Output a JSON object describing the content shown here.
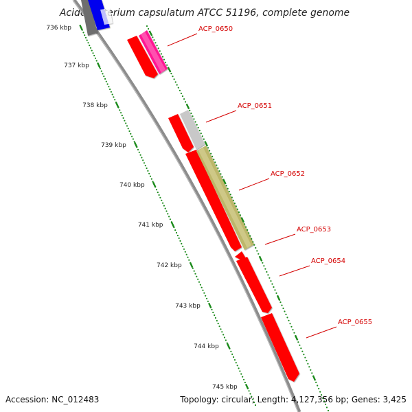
{
  "title": "Acidobacterium capsulatum ATCC 51196, complete genome",
  "footer": {
    "accession": "Accession: NC_012483",
    "summary": "Topology: circular; Length: 4,127,356 bp; Genes: 3,425"
  },
  "ticks": [
    "736 kbp",
    "737 kbp",
    "738 kbp",
    "739 kbp",
    "740 kbp",
    "741 kbp",
    "742 kbp",
    "743 kbp",
    "744 kbp",
    "745 kbp"
  ],
  "colors": {
    "backbone": "#8c8c8c",
    "cds": "#ff0000",
    "pink": "#ff1493",
    "gray_feature": "#c8c8c8",
    "olive": "#bdb76b",
    "blue": "#0000ee",
    "dark_gray": "#6e6e6e",
    "tick_dots": "#1a8a1a",
    "label": "#d40000"
  },
  "genes": [
    {
      "name": "ACP_0650"
    },
    {
      "name": "ACP_0651"
    },
    {
      "name": "ACP_0652"
    },
    {
      "name": "ACP_0653"
    },
    {
      "name": "ACP_0654"
    },
    {
      "name": "ACP_0655"
    }
  ]
}
